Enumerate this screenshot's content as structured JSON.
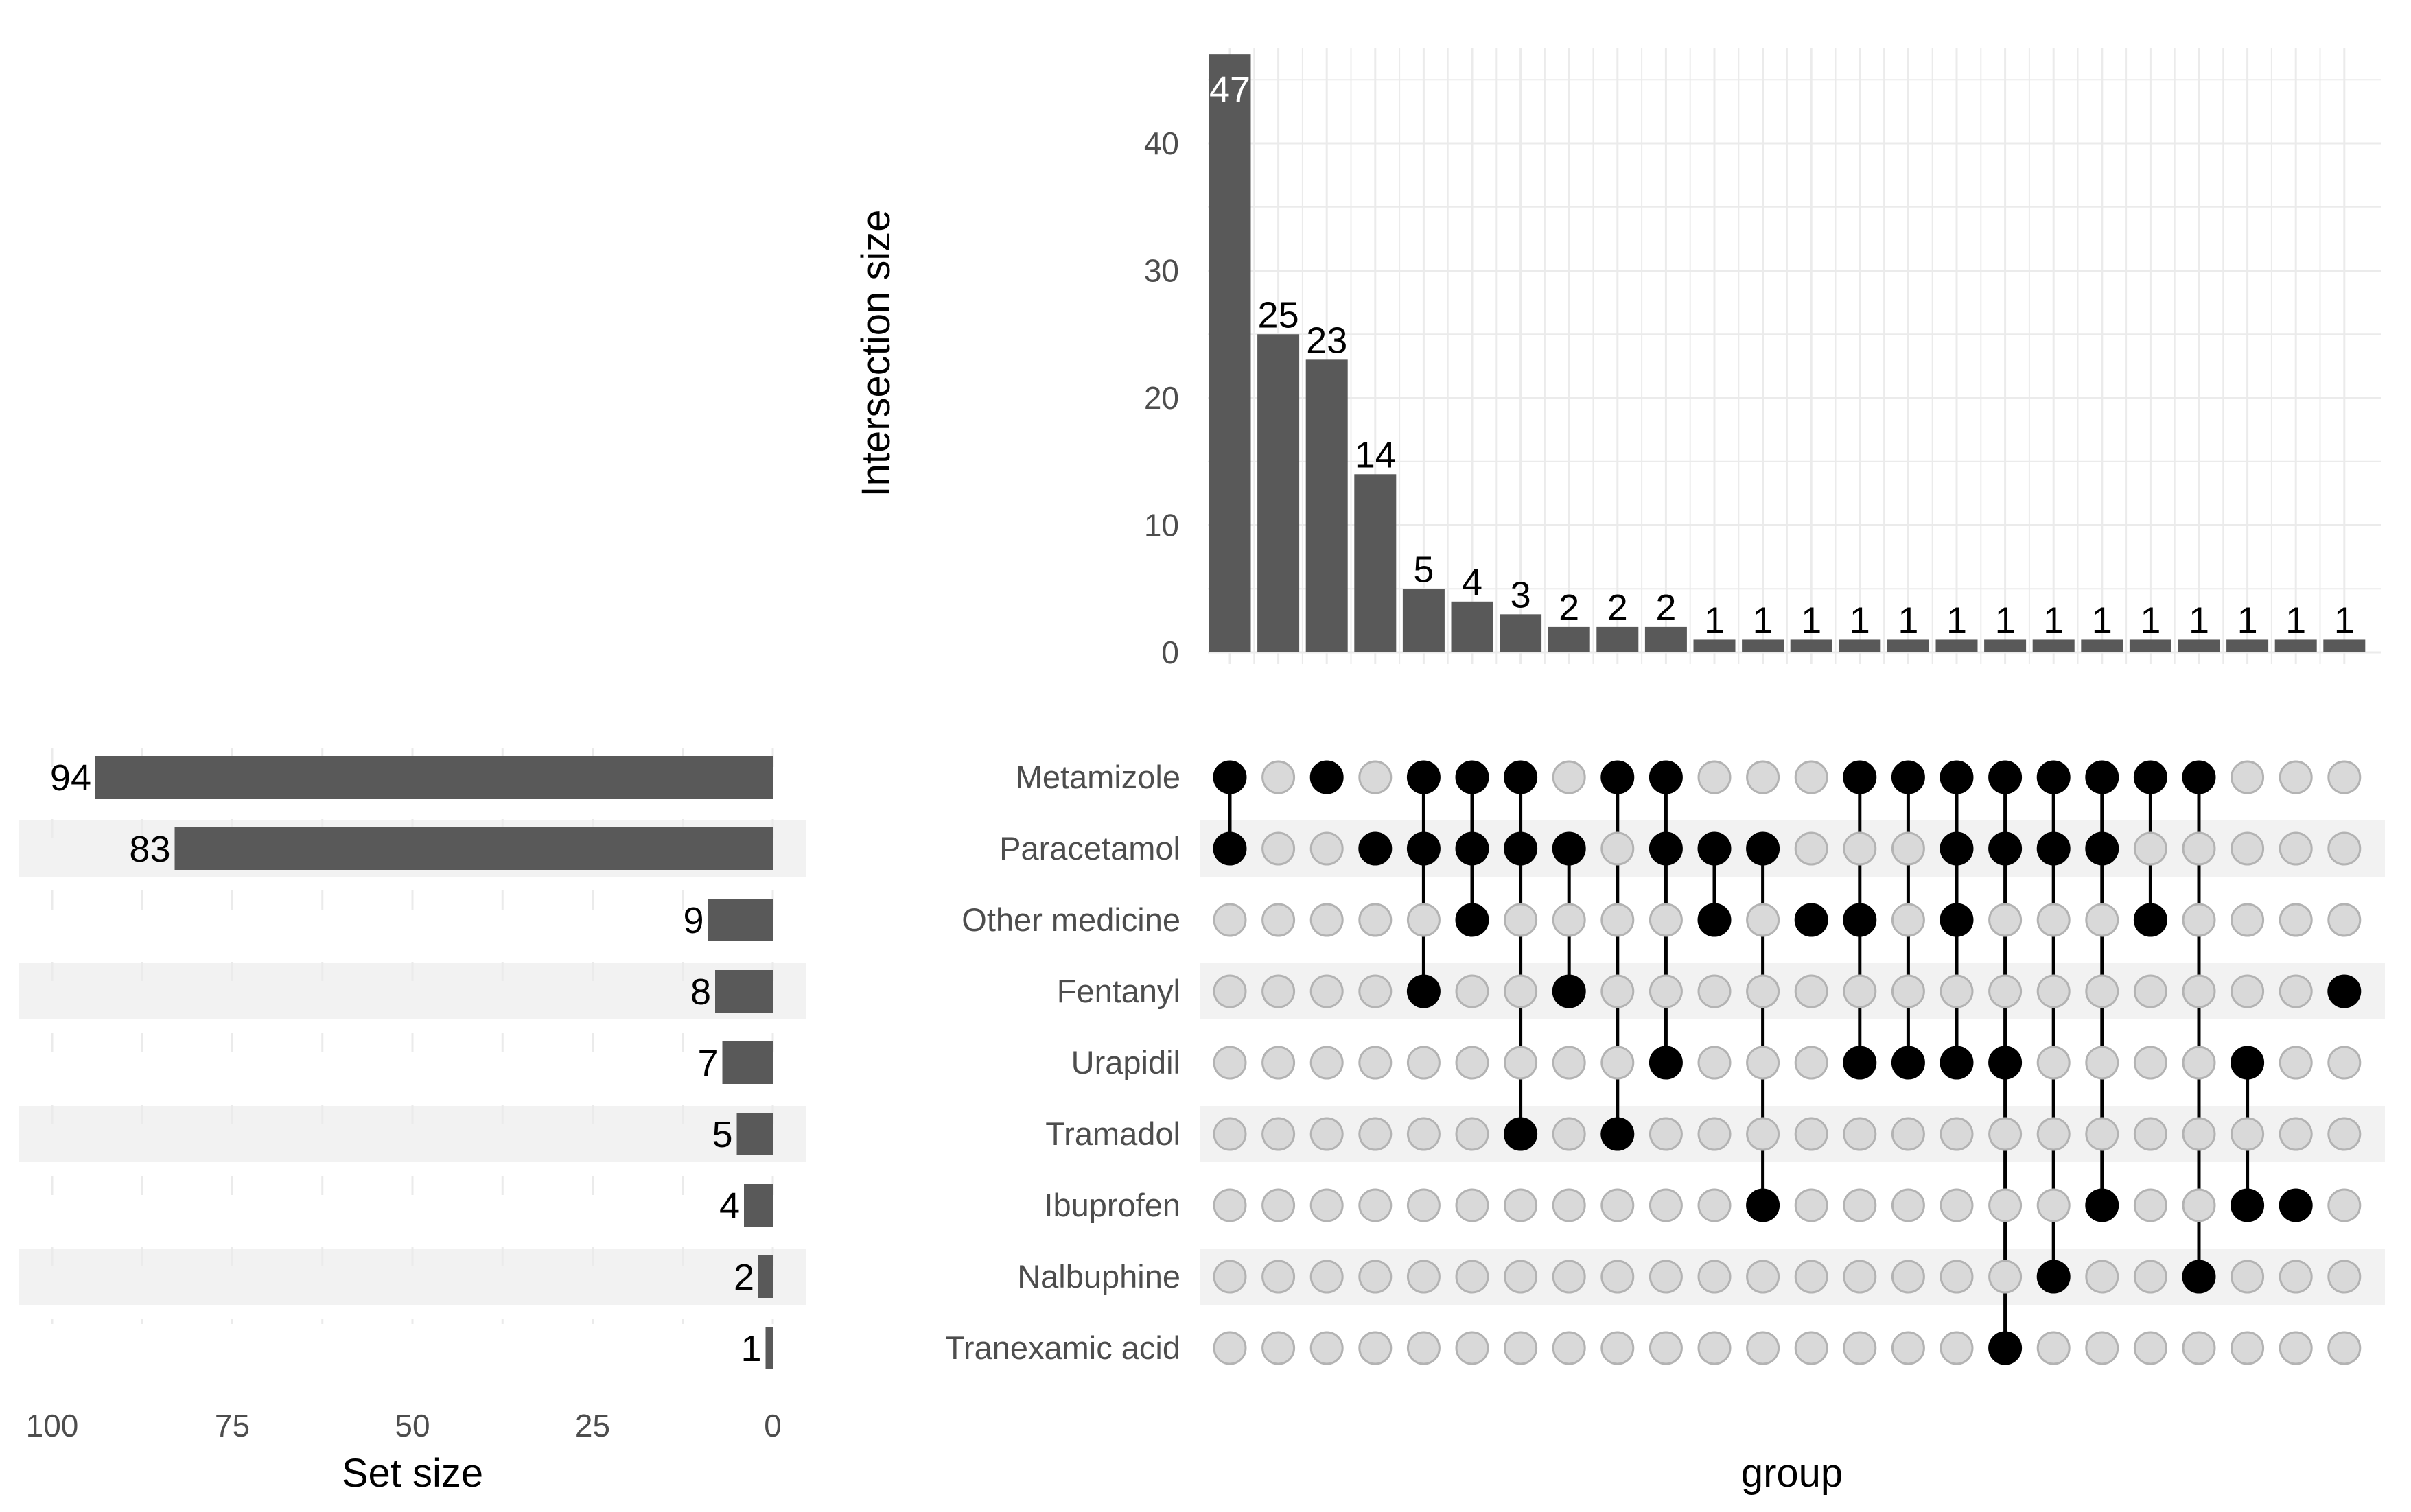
{
  "chart_data": {
    "type": "upset",
    "sets": [
      "Metamizole",
      "Paracetamol",
      "Other medicine",
      "Fentanyl",
      "Urapidil",
      "Tramadol",
      "Ibuprofen",
      "Nalbuphine",
      "Tranexamic acid"
    ],
    "set_sizes": [
      94,
      83,
      9,
      8,
      7,
      5,
      4,
      2,
      1
    ],
    "set_size_axis": {
      "title": "Set size",
      "ticks": [
        100,
        75,
        50,
        25,
        0
      ],
      "range": [
        0,
        100
      ]
    },
    "intersection_axis": {
      "title": "Intersection size",
      "ticks": [
        0,
        10,
        20,
        30,
        40
      ],
      "range": [
        0,
        47
      ]
    },
    "matrix_xlabel": "group",
    "intersections": [
      {
        "size": 47,
        "members": [
          0,
          1
        ]
      },
      {
        "size": 25,
        "members": []
      },
      {
        "size": 23,
        "members": [
          0
        ]
      },
      {
        "size": 14,
        "members": [
          1
        ]
      },
      {
        "size": 5,
        "members": [
          0,
          1,
          3
        ]
      },
      {
        "size": 4,
        "members": [
          0,
          1,
          2
        ]
      },
      {
        "size": 3,
        "members": [
          0,
          1,
          5
        ]
      },
      {
        "size": 2,
        "members": [
          1,
          3
        ]
      },
      {
        "size": 2,
        "members": [
          0,
          5
        ]
      },
      {
        "size": 2,
        "members": [
          0,
          1,
          4
        ]
      },
      {
        "size": 1,
        "members": [
          1,
          2
        ]
      },
      {
        "size": 1,
        "members": [
          1,
          6
        ]
      },
      {
        "size": 1,
        "members": [
          2
        ]
      },
      {
        "size": 1,
        "members": [
          0,
          2,
          4
        ]
      },
      {
        "size": 1,
        "members": [
          0,
          4
        ]
      },
      {
        "size": 1,
        "members": [
          0,
          1,
          2,
          4
        ]
      },
      {
        "size": 1,
        "members": [
          0,
          1,
          4,
          8
        ]
      },
      {
        "size": 1,
        "members": [
          0,
          1,
          7
        ]
      },
      {
        "size": 1,
        "members": [
          0,
          1,
          6
        ]
      },
      {
        "size": 1,
        "members": [
          0,
          2
        ]
      },
      {
        "size": 1,
        "members": [
          0,
          7
        ]
      },
      {
        "size": 1,
        "members": [
          4,
          6
        ]
      },
      {
        "size": 1,
        "members": [
          6
        ]
      },
      {
        "size": 1,
        "members": [
          3
        ]
      }
    ]
  },
  "colors": {
    "bar": "#595959",
    "dot_active": "#000000",
    "dot_inactive": "#d9d9d9",
    "dot_inactive_stroke": "#b3b3b3",
    "stripe": "#f2f2f2",
    "grid": "#ebebeb"
  }
}
